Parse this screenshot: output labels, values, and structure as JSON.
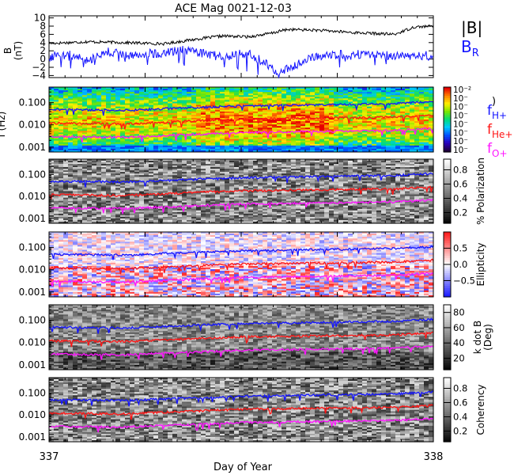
{
  "title": "ACE Mag 0021-12-03",
  "x_label": "Day of Year",
  "x_ticks": [
    "337",
    "338"
  ],
  "chart_data": [
    {
      "type": "line",
      "panel": "magnetic-field",
      "ylabel": "B (nT)",
      "ylabel_parts": [
        "B",
        "(nT)"
      ],
      "ylim": [
        -4.5,
        10.5
      ],
      "yticks": [
        "10",
        "8",
        "6",
        "4",
        "2",
        "0",
        "−2",
        "−4"
      ],
      "ytick_values": [
        10,
        8,
        6,
        4,
        2,
        0,
        -2,
        -4
      ],
      "xlim": [
        337,
        338
      ],
      "legend": [
        "|B|",
        "B_R"
      ],
      "series": [
        {
          "name": "|B|",
          "color": "#000000",
          "x": [
            337.0,
            337.1,
            337.2,
            337.3,
            337.38,
            337.45,
            337.52,
            337.58,
            337.62,
            337.7,
            337.8,
            337.9,
            337.95,
            338.0
          ],
          "y": [
            3.8,
            4.2,
            4.0,
            3.7,
            4.8,
            5.6,
            5.4,
            6.3,
            7.2,
            7.0,
            6.4,
            6.0,
            7.8,
            8.0
          ]
        },
        {
          "name": "B_R",
          "color": "#1414ff",
          "x": [
            337.0,
            337.05,
            337.1,
            337.15,
            337.2,
            337.3,
            337.35,
            337.45,
            337.52,
            337.56,
            337.6,
            337.65,
            337.7,
            337.8,
            337.9,
            338.0
          ],
          "y": [
            0.5,
            1.4,
            -0.3,
            1.8,
            1.0,
            1.5,
            2.2,
            0.5,
            1.5,
            -1.0,
            -3.5,
            -1.0,
            0.8,
            1.2,
            0.8,
            0.8
          ]
        }
      ]
    },
    {
      "type": "heatmap",
      "panel": "power-spectrum",
      "ylabel": "f (Hz)",
      "yscale": "log",
      "ylim": [
        0.0006,
        0.5
      ],
      "yticks": [
        "0.100",
        "0.010",
        "0.001"
      ],
      "ytick_values": [
        0.1,
        0.01,
        0.001
      ],
      "colorbar_ticks": [
        "10⁻²",
        "10⁻",
        "10⁻",
        "10⁻",
        "10⁻",
        "10⁻",
        "10⁻",
        "10⁻"
      ],
      "colorbar_label": ")",
      "legend": [
        "f_H+",
        "f_He+",
        "f_O+"
      ],
      "series": [
        {
          "name": "f_H+",
          "color": "#1414ff",
          "x": [
            337.0,
            337.2,
            337.38,
            337.5,
            337.7,
            337.9,
            338.0
          ],
          "y": [
            0.05,
            0.045,
            0.06,
            0.07,
            0.08,
            0.09,
            0.11
          ]
        },
        {
          "name": "f_He+",
          "color": "#ff1414",
          "x": [
            337.0,
            337.2,
            337.38,
            337.5,
            337.7,
            337.9,
            338.0
          ],
          "y": [
            0.012,
            0.011,
            0.015,
            0.018,
            0.02,
            0.022,
            0.027
          ]
        },
        {
          "name": "f_O+",
          "color": "#ff14ff",
          "x": [
            337.0,
            337.2,
            337.38,
            337.5,
            337.7,
            337.9,
            338.0
          ],
          "y": [
            0.003,
            0.0028,
            0.0037,
            0.0045,
            0.005,
            0.0056,
            0.0068
          ]
        }
      ]
    },
    {
      "type": "heatmap",
      "panel": "polarization",
      "yscale": "log",
      "ylim": [
        0.0006,
        0.5
      ],
      "yticks": [
        "0.100",
        "0.010",
        "0.001"
      ],
      "ytick_values": [
        0.1,
        0.01,
        0.001
      ],
      "colorbar_label": "% Polarization",
      "colorbar_ticks": [
        "0.8",
        "0.6",
        "0.4",
        "0.2"
      ],
      "colorbar_values": [
        0.8,
        0.6,
        0.4,
        0.2
      ],
      "colorbar_range": [
        0.05,
        0.95
      ]
    },
    {
      "type": "heatmap",
      "panel": "ellipticity",
      "yscale": "log",
      "ylim": [
        0.0006,
        0.5
      ],
      "yticks": [
        "0.100",
        "0.010",
        "0.001"
      ],
      "ytick_values": [
        0.1,
        0.01,
        0.001
      ],
      "colorbar_label": "Ellipticity",
      "colorbar_ticks": [
        "0.5",
        "0.0",
        "−0.5"
      ],
      "colorbar_values": [
        0.5,
        0.0,
        -0.5
      ],
      "colorbar_range": [
        -1,
        1
      ]
    },
    {
      "type": "heatmap",
      "panel": "k-dot-b",
      "yscale": "log",
      "ylim": [
        0.0006,
        0.5
      ],
      "yticks": [
        "0.100",
        "0.010",
        "0.001"
      ],
      "ytick_values": [
        0.1,
        0.01,
        0.001
      ],
      "colorbar_label_parts": [
        "k dot B",
        "(Deg)"
      ],
      "colorbar_ticks": [
        "80",
        "60",
        "40",
        "20"
      ],
      "colorbar_values": [
        80,
        60,
        40,
        20
      ],
      "colorbar_range": [
        5,
        90
      ]
    },
    {
      "type": "heatmap",
      "panel": "coherency",
      "yscale": "log",
      "ylim": [
        0.0006,
        0.5
      ],
      "yticks": [
        "0.100",
        "0.010",
        "0.001"
      ],
      "ytick_values": [
        0.1,
        0.01,
        0.001
      ],
      "colorbar_label": "Coherency",
      "colorbar_ticks": [
        "0.8",
        "0.6",
        "0.4",
        "0.2"
      ],
      "colorbar_values": [
        0.8,
        0.6,
        0.4,
        0.2
      ],
      "colorbar_range": [
        0.05,
        0.95
      ]
    }
  ],
  "colors": {
    "blue": "#1414ff",
    "red": "#ff1414",
    "magenta": "#ff14ff"
  }
}
